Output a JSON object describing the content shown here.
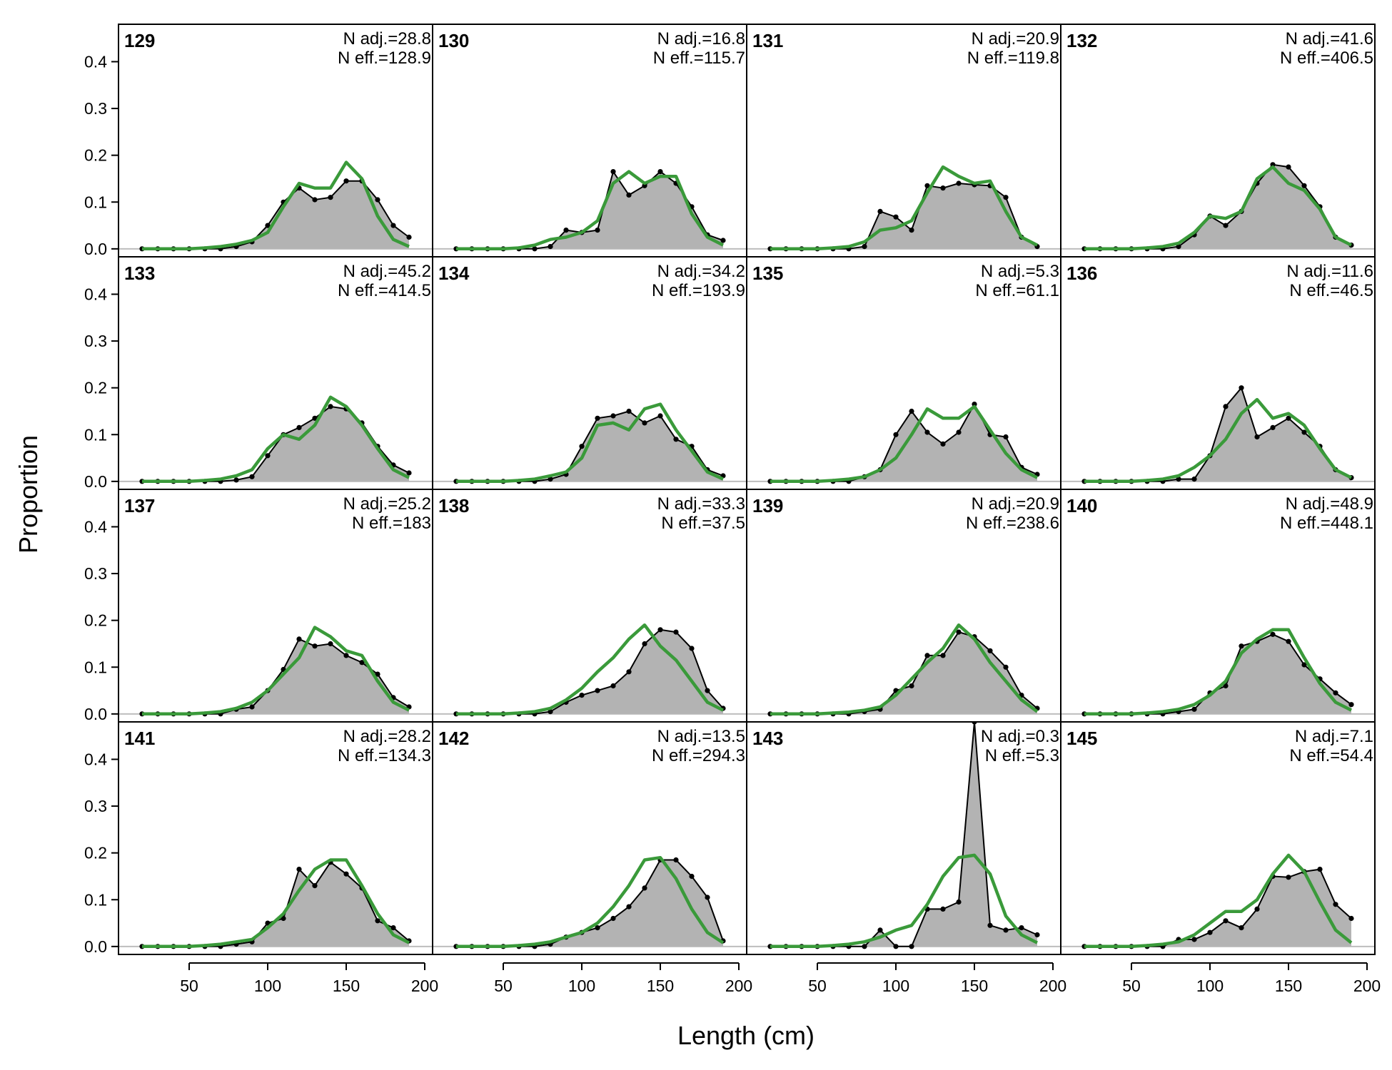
{
  "chart_data": {
    "type": "area",
    "xlabel": "Length (cm)",
    "ylabel": "Proportion",
    "x": [
      20,
      30,
      40,
      50,
      60,
      70,
      80,
      90,
      100,
      110,
      120,
      130,
      140,
      150,
      160,
      170,
      180,
      190
    ],
    "xlim": [
      5,
      205
    ],
    "ylim": [
      -0.017,
      0.48
    ],
    "x_ticks": [
      50,
      100,
      150,
      200
    ],
    "y_ticks": [
      0.0,
      0.1,
      0.2,
      0.3,
      0.4
    ],
    "x_tick_labels": [
      "50",
      "100",
      "150",
      "200"
    ],
    "y_tick_labels": [
      "0.0",
      "0.1",
      "0.2",
      "0.3",
      "0.4"
    ],
    "colors": {
      "observed_fill": "#b3b3b3",
      "observed_line": "#000000",
      "expected_line": "#3a9a3a",
      "zero_line": "#bdbdbd"
    },
    "panels": [
      {
        "id": "129",
        "n_adj": "N adj.=28.8",
        "n_eff": "N eff.=128.9",
        "observed": [
          0,
          0,
          0,
          0,
          0,
          0,
          0.005,
          0.015,
          0.05,
          0.1,
          0.13,
          0.105,
          0.11,
          0.145,
          0.145,
          0.105,
          0.05,
          0.025
        ],
        "expected": [
          0,
          0,
          0,
          0,
          0.002,
          0.005,
          0.01,
          0.018,
          0.035,
          0.09,
          0.14,
          0.13,
          0.13,
          0.185,
          0.15,
          0.07,
          0.02,
          0.005
        ]
      },
      {
        "id": "133",
        "n_adj": "N adj.=45.2",
        "n_eff": "N eff.=414.5",
        "observed": [
          0,
          0,
          0,
          0,
          0,
          0,
          0.003,
          0.01,
          0.055,
          0.1,
          0.115,
          0.135,
          0.16,
          0.155,
          0.125,
          0.075,
          0.035,
          0.018
        ],
        "expected": [
          0,
          0,
          0,
          0,
          0.002,
          0.005,
          0.012,
          0.025,
          0.07,
          0.1,
          0.09,
          0.12,
          0.18,
          0.16,
          0.12,
          0.07,
          0.025,
          0.008
        ]
      },
      {
        "id": "137",
        "n_adj": "N adj.=25.2",
        "n_eff": "N eff.=183",
        "observed": [
          0,
          0,
          0,
          0,
          0,
          0,
          0.01,
          0.015,
          0.05,
          0.095,
          0.16,
          0.145,
          0.15,
          0.125,
          0.11,
          0.085,
          0.035,
          0.015
        ],
        "expected": [
          0,
          0,
          0,
          0,
          0.002,
          0.005,
          0.012,
          0.025,
          0.05,
          0.085,
          0.12,
          0.185,
          0.165,
          0.135,
          0.125,
          0.07,
          0.025,
          0.008
        ]
      },
      {
        "id": "141",
        "n_adj": "N adj.=28.2",
        "n_eff": "N eff.=134.3",
        "observed": [
          0,
          0,
          0,
          0,
          0,
          0,
          0.005,
          0.01,
          0.05,
          0.06,
          0.165,
          0.13,
          0.18,
          0.155,
          0.125,
          0.055,
          0.04,
          0.012
        ],
        "expected": [
          0,
          0,
          0,
          0,
          0.002,
          0.005,
          0.01,
          0.015,
          0.04,
          0.07,
          0.12,
          0.165,
          0.185,
          0.185,
          0.13,
          0.07,
          0.025,
          0.008
        ]
      },
      {
        "id": "130",
        "n_adj": "N adj.=16.8",
        "n_eff": "N eff.=115.7",
        "observed": [
          0,
          0,
          0,
          0,
          0,
          0,
          0.005,
          0.04,
          0.035,
          0.04,
          0.165,
          0.115,
          0.135,
          0.165,
          0.14,
          0.09,
          0.03,
          0.018
        ],
        "expected": [
          0,
          0,
          0,
          0,
          0.002,
          0.008,
          0.02,
          0.025,
          0.035,
          0.06,
          0.14,
          0.165,
          0.14,
          0.155,
          0.155,
          0.075,
          0.025,
          0.008
        ]
      },
      {
        "id": "134",
        "n_adj": "N adj.=34.2",
        "n_eff": "N eff.=193.9",
        "observed": [
          0,
          0,
          0,
          0,
          0,
          0,
          0.005,
          0.015,
          0.075,
          0.135,
          0.14,
          0.15,
          0.125,
          0.14,
          0.09,
          0.075,
          0.025,
          0.012
        ],
        "expected": [
          0,
          0,
          0,
          0,
          0.002,
          0.005,
          0.012,
          0.02,
          0.05,
          0.12,
          0.125,
          0.11,
          0.155,
          0.165,
          0.11,
          0.065,
          0.02,
          0.005
        ]
      },
      {
        "id": "138",
        "n_adj": "N adj.=33.3",
        "n_eff": "N eff.=37.5",
        "observed": [
          0,
          0,
          0,
          0,
          0,
          0,
          0.005,
          0.025,
          0.04,
          0.05,
          0.06,
          0.09,
          0.15,
          0.18,
          0.175,
          0.14,
          0.05,
          0.012
        ],
        "expected": [
          0,
          0,
          0,
          0,
          0.002,
          0.005,
          0.012,
          0.03,
          0.055,
          0.09,
          0.12,
          0.16,
          0.19,
          0.145,
          0.115,
          0.07,
          0.025,
          0.008
        ]
      },
      {
        "id": "142",
        "n_adj": "N adj.=13.5",
        "n_eff": "N eff.=294.3",
        "observed": [
          0,
          0,
          0,
          0,
          0,
          0,
          0.005,
          0.02,
          0.03,
          0.04,
          0.06,
          0.085,
          0.125,
          0.185,
          0.185,
          0.15,
          0.105,
          0.012
        ],
        "expected": [
          0,
          0,
          0,
          0,
          0.002,
          0.005,
          0.01,
          0.02,
          0.03,
          0.05,
          0.085,
          0.13,
          0.185,
          0.19,
          0.145,
          0.08,
          0.03,
          0.008
        ]
      },
      {
        "id": "131",
        "n_adj": "N adj.=20.9",
        "n_eff": "N eff.=119.8",
        "observed": [
          0,
          0,
          0,
          0,
          0,
          0,
          0.005,
          0.08,
          0.068,
          0.04,
          0.135,
          0.13,
          0.14,
          0.137,
          0.135,
          0.11,
          0.025,
          0.005
        ],
        "expected": [
          0,
          0,
          0,
          0,
          0.002,
          0.005,
          0.015,
          0.04,
          0.045,
          0.06,
          0.12,
          0.175,
          0.155,
          0.14,
          0.145,
          0.08,
          0.025,
          0.008
        ]
      },
      {
        "id": "135",
        "n_adj": "N adj.=5.3",
        "n_eff": "N eff.=61.1",
        "observed": [
          0,
          0,
          0,
          0,
          0,
          0,
          0.01,
          0.025,
          0.1,
          0.15,
          0.105,
          0.08,
          0.105,
          0.165,
          0.1,
          0.095,
          0.03,
          0.015
        ],
        "expected": [
          0,
          0,
          0,
          0,
          0.002,
          0.005,
          0.01,
          0.025,
          0.05,
          0.1,
          0.155,
          0.135,
          0.135,
          0.16,
          0.11,
          0.06,
          0.025,
          0.008
        ]
      },
      {
        "id": "139",
        "n_adj": "N adj.=20.9",
        "n_eff": "N eff.=238.6",
        "observed": [
          0,
          0,
          0,
          0,
          0,
          0,
          0.005,
          0.01,
          0.05,
          0.06,
          0.125,
          0.125,
          0.175,
          0.165,
          0.135,
          0.1,
          0.04,
          0.012
        ],
        "expected": [
          0,
          0,
          0,
          0,
          0.002,
          0.004,
          0.008,
          0.015,
          0.04,
          0.075,
          0.11,
          0.14,
          0.19,
          0.16,
          0.11,
          0.07,
          0.03,
          0.005
        ]
      },
      {
        "id": "143",
        "n_adj": "N adj.=0.3",
        "n_eff": "N eff.=5.3",
        "observed": [
          0,
          0,
          0,
          0,
          0,
          0,
          0,
          0.035,
          0,
          0,
          0.08,
          0.08,
          0.095,
          0.48,
          0.045,
          0.035,
          0.04,
          0.025
        ],
        "expected": [
          0,
          0,
          0,
          0,
          0.002,
          0.005,
          0.01,
          0.02,
          0.035,
          0.045,
          0.09,
          0.15,
          0.19,
          0.195,
          0.155,
          0.065,
          0.025,
          0.008
        ]
      },
      {
        "id": "132",
        "n_adj": "N adj.=41.6",
        "n_eff": "N eff.=406.5",
        "observed": [
          0,
          0,
          0,
          0,
          0,
          0,
          0.005,
          0.03,
          0.07,
          0.05,
          0.08,
          0.14,
          0.18,
          0.175,
          0.135,
          0.09,
          0.025,
          0.008
        ],
        "expected": [
          0,
          0,
          0,
          0,
          0.002,
          0.005,
          0.012,
          0.035,
          0.07,
          0.065,
          0.08,
          0.15,
          0.175,
          0.14,
          0.125,
          0.085,
          0.025,
          0.008
        ]
      },
      {
        "id": "136",
        "n_adj": "N adj.=11.6",
        "n_eff": "N eff.=46.5",
        "observed": [
          0,
          0,
          0,
          0,
          0,
          0,
          0.005,
          0.005,
          0.055,
          0.16,
          0.2,
          0.095,
          0.115,
          0.135,
          0.105,
          0.075,
          0.025,
          0.008
        ],
        "expected": [
          0,
          0,
          0,
          0,
          0.002,
          0.005,
          0.012,
          0.03,
          0.055,
          0.09,
          0.145,
          0.175,
          0.135,
          0.145,
          0.12,
          0.07,
          0.025,
          0.008
        ]
      },
      {
        "id": "140",
        "n_adj": "N adj.=48.9",
        "n_eff": "N eff.=448.1",
        "observed": [
          0,
          0,
          0,
          0,
          0,
          0,
          0.005,
          0.01,
          0.045,
          0.06,
          0.145,
          0.155,
          0.17,
          0.155,
          0.105,
          0.075,
          0.045,
          0.02
        ],
        "expected": [
          0,
          0,
          0,
          0,
          0.002,
          0.005,
          0.01,
          0.02,
          0.04,
          0.07,
          0.13,
          0.16,
          0.18,
          0.18,
          0.12,
          0.065,
          0.025,
          0.008
        ]
      },
      {
        "id": "145",
        "n_adj": "N adj.=7.1",
        "n_eff": "N eff.=54.4",
        "observed": [
          0,
          0,
          0,
          0,
          0,
          0,
          0.015,
          0.015,
          0.03,
          0.055,
          0.04,
          0.08,
          0.15,
          0.148,
          0.16,
          0.165,
          0.09,
          0.06
        ],
        "expected": [
          0,
          0,
          0,
          0,
          0.002,
          0.005,
          0.01,
          0.025,
          0.05,
          0.075,
          0.075,
          0.1,
          0.155,
          0.195,
          0.16,
          0.095,
          0.035,
          0.008
        ]
      }
    ]
  }
}
